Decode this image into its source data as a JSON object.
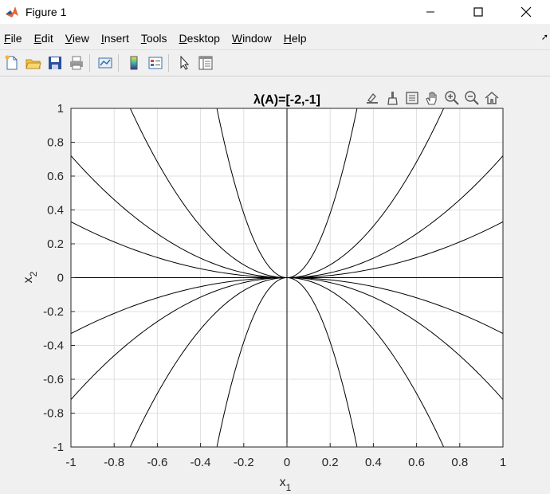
{
  "window": {
    "title": "Figure 1",
    "app_icon": "matlab-icon",
    "controls": [
      "minimize-icon",
      "maximize-icon",
      "close-icon"
    ]
  },
  "menu": {
    "items": [
      {
        "label": "File"
      },
      {
        "label": "Edit"
      },
      {
        "label": "View"
      },
      {
        "label": "Insert"
      },
      {
        "label": "Tools"
      },
      {
        "label": "Desktop"
      },
      {
        "label": "Window"
      },
      {
        "label": "Help"
      }
    ]
  },
  "toolbar": {
    "buttons": [
      "new-figure-icon",
      "open-file-icon",
      "save-icon",
      "print-icon",
      "link-plot-icon",
      "colorbar-icon",
      "legend-icon",
      "edit-plot-icon",
      "property-inspector-icon"
    ]
  },
  "axes_toolbar": {
    "buttons": [
      "export-icon",
      "brush-icon",
      "data-tips-icon",
      "pan-icon",
      "zoom-in-icon",
      "zoom-out-icon",
      "home-icon"
    ]
  },
  "colors": {
    "background": "#f0f0f0",
    "plot_background": "#ffffff",
    "curve": "#000000",
    "grid": "#dfdfdf"
  },
  "chart_data": {
    "type": "line",
    "title": "λ(A)=[-2,-1]",
    "xlabel": "x",
    "xlabel_sub": "1",
    "ylabel": "x",
    "ylabel_sub": "2",
    "xlim": [
      -1,
      1
    ],
    "ylim": [
      -1,
      1
    ],
    "xticks": [
      -1,
      -0.8,
      -0.6,
      -0.4,
      -0.2,
      0,
      0.2,
      0.4,
      0.6,
      0.8,
      1
    ],
    "yticks": [
      -1,
      -0.8,
      -0.6,
      -0.4,
      -0.2,
      0,
      0.2,
      0.4,
      0.6,
      0.8,
      1
    ],
    "grid": true,
    "series": [
      {
        "x": [
          -1,
          1
        ],
        "y": [
          0,
          0
        ]
      },
      {
        "x": [
          0,
          0
        ],
        "y": [
          -1,
          1
        ]
      },
      {
        "x_formula": "x",
        "y_formula": "0.33*x^2",
        "x": [
          -1,
          1
        ]
      },
      {
        "x_formula": "x",
        "y_formula": "0.72*x^2",
        "x": [
          -1,
          1
        ]
      },
      {
        "x_formula": "x",
        "y_formula": "1.9*x^2",
        "x": [
          -0.725,
          0.725
        ]
      },
      {
        "x_formula": "x",
        "y_formula": "9.5*x^2",
        "x": [
          -0.324,
          0.324
        ]
      },
      {
        "x_formula": "x",
        "y_formula": "-0.33*x^2",
        "x": [
          -1,
          1
        ]
      },
      {
        "x_formula": "x",
        "y_formula": "-0.72*x^2",
        "x": [
          -1,
          1
        ]
      },
      {
        "x_formula": "x",
        "y_formula": "-1.9*x^2",
        "x": [
          -0.725,
          0.725
        ]
      },
      {
        "x_formula": "x",
        "y_formula": "-9.5*x^2",
        "x": [
          -0.324,
          0.324
        ]
      }
    ]
  }
}
